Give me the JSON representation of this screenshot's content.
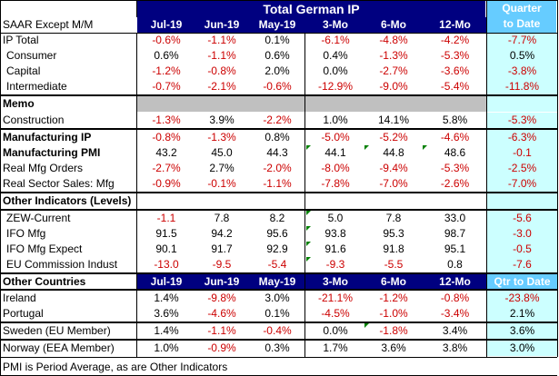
{
  "title": "Total German IP",
  "subtitle": "SAAR Except M/M",
  "qtd_header": [
    "Quarter",
    "to Date"
  ],
  "columns": [
    "Jul-19",
    "Jun-19",
    "May-19",
    "3-Mo",
    "6-Mo",
    "12-Mo"
  ],
  "rows": [
    {
      "label": "IP Total",
      "values": [
        "-0.6%",
        "-1.1%",
        "0.1%",
        "-6.1%",
        "-4.8%",
        "-4.2%",
        "-7.7%"
      ]
    },
    {
      "label": "Consumer",
      "values": [
        "0.6%",
        "-1.1%",
        "0.6%",
        "0.4%",
        "-1.3%",
        "-5.3%",
        "0.5%"
      ]
    },
    {
      "label": "Capital",
      "values": [
        "-1.2%",
        "-0.8%",
        "2.0%",
        "0.0%",
        "-2.7%",
        "-3.6%",
        "-3.8%"
      ]
    },
    {
      "label": "Intermediate",
      "values": [
        "-0.7%",
        "-2.1%",
        "-0.6%",
        "-12.9%",
        "-9.0%",
        "-5.4%",
        "-11.8%"
      ]
    },
    {
      "label": "Memo"
    },
    {
      "label": "Construction",
      "values": [
        "-1.3%",
        "3.9%",
        "-2.2%",
        "1.0%",
        "14.1%",
        "5.8%",
        "-5.3%"
      ]
    },
    {
      "label": "Manufacturing IP",
      "values": [
        "-0.8%",
        "-1.3%",
        "0.8%",
        "-5.0%",
        "-5.2%",
        "-4.6%",
        "-6.3%"
      ]
    },
    {
      "label": "Manufacturing PMI",
      "values": [
        "43.2",
        "45.0",
        "44.3",
        "44.1",
        "44.8",
        "48.6",
        "-0.1"
      ]
    },
    {
      "label": "Real Mfg Orders",
      "values": [
        "-2.7%",
        "2.7%",
        "-2.0%",
        "-8.0%",
        "-9.4%",
        "-5.3%",
        "-2.5%"
      ]
    },
    {
      "label": "Real Sector Sales: Mfg",
      "values": [
        "-0.9%",
        "-0.1%",
        "-1.1%",
        "-7.8%",
        "-7.0%",
        "-2.6%",
        "-7.0%"
      ]
    },
    {
      "label": "Other Indicators (Levels)"
    },
    {
      "label": "ZEW-Current",
      "values": [
        "-1.1",
        "7.8",
        "8.2",
        "5.0",
        "7.8",
        "33.0",
        "-5.6"
      ]
    },
    {
      "label": "IFO Mfg",
      "values": [
        "91.5",
        "94.2",
        "95.6",
        "93.8",
        "95.3",
        "98.7",
        "-3.0"
      ]
    },
    {
      "label": "IFO Mfg Expect",
      "values": [
        "90.1",
        "91.7",
        "92.9",
        "91.6",
        "91.8",
        "95.1",
        "-0.5"
      ]
    },
    {
      "label": "EU Commission Indust",
      "values": [
        "-13.0",
        "-9.5",
        "-5.4",
        "-9.3",
        "-5.5",
        "0.8",
        "-7.6"
      ]
    },
    {
      "label": "Other Countries",
      "values": [
        "Jul-19",
        "Jun-19",
        "May-19",
        "3-Mo",
        "6-Mo",
        "12-Mo",
        "Qtr to Date"
      ]
    },
    {
      "label": "Ireland",
      "values": [
        "1.4%",
        "-9.8%",
        "3.0%",
        "-21.1%",
        "-1.2%",
        "-0.8%",
        "-23.8%"
      ]
    },
    {
      "label": "Portugal",
      "values": [
        "3.6%",
        "-4.6%",
        "0.1%",
        "-4.5%",
        "-1.0%",
        "-3.4%",
        "2.1%"
      ]
    },
    {
      "label": "Sweden (EU Member)",
      "values": [
        "1.4%",
        "-1.1%",
        "-0.4%",
        "0.0%",
        "-1.8%",
        "3.4%",
        "3.6%"
      ]
    },
    {
      "label": "Norway (EEA Member)",
      "values": [
        "1.0%",
        "-0.9%",
        "0.3%",
        "1.7%",
        "3.6%",
        "3.8%",
        "3.0%"
      ]
    }
  ],
  "footnote": "PMI is Period Average, as are Other Indicators",
  "colors": {
    "navy": "#000080",
    "negative": "#cc0000",
    "positive": "#000000",
    "qtd_column": "#ccffff",
    "qtd_header": "#66ccff",
    "memo_band": "#c0c0c0",
    "marker": "#008000"
  }
}
